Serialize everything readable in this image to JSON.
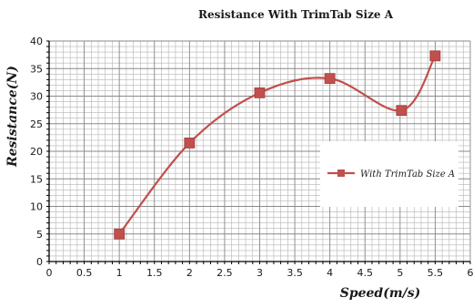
{
  "chart_data": {
    "type": "line",
    "title": "Resistance With TrimTab Size A",
    "xlabel": "Speed(m/s)",
    "ylabel": "Resistance(N)",
    "xlim": [
      0,
      6
    ],
    "ylim": [
      0,
      40
    ],
    "x_ticks": [
      "0",
      "0.5",
      "1",
      "1.5",
      "2",
      "2.5",
      "3",
      "3.5",
      "4",
      "4.5",
      "5",
      "5.5",
      "6"
    ],
    "y_ticks": [
      "0",
      "5",
      "10",
      "15",
      "20",
      "25",
      "30",
      "35",
      "40"
    ],
    "grid": true,
    "legend": "right",
    "series": [
      {
        "name": "With TrimTab Size A",
        "color": "#c0504d",
        "marker": "square",
        "smooth": true,
        "x": [
          1,
          2,
          3,
          4,
          5.02,
          5.5
        ],
        "y": [
          5,
          21.5,
          30.6,
          33.2,
          27.4,
          37.3
        ]
      }
    ]
  }
}
